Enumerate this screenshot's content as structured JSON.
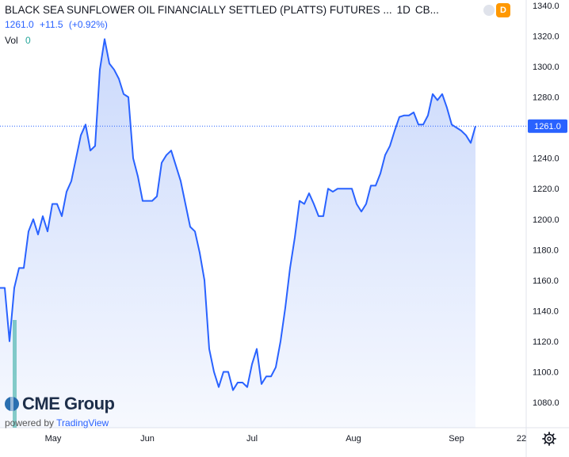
{
  "header": {
    "title": "BLACK SEA SUNFLOWER OIL FINANCIALLY SETTLED (PLATTS) FUTURES ...",
    "interval": "1D",
    "exchange": "CB...",
    "last": "1261.0",
    "change": "+11.5",
    "change_pct": "(+0.92%)",
    "vol_label": "Vol",
    "vol_value": "0",
    "badge": "D"
  },
  "logo": {
    "brand": "CME Group",
    "powered_prefix": "powered by",
    "powered_brand": "TradingView"
  },
  "colors": {
    "line": "#2962ff",
    "area_top": "#c5d5fb",
    "area_bottom": "#ffffff",
    "volume": "#26a69a",
    "price_label_bg": "#2962ff"
  },
  "chart_data": {
    "type": "area",
    "ylim": [
      1060,
      1340
    ],
    "yticks": [
      "1340.0",
      "1320.0",
      "1300.0",
      "1280.0",
      "1260.0",
      "1240.0",
      "1220.0",
      "1200.0",
      "1180.0",
      "1160.0",
      "1140.0",
      "1120.0",
      "1100.0",
      "1080.0"
    ],
    "xticks": [
      "May",
      "Jun",
      "Jul",
      "Aug",
      "Sep",
      "22"
    ],
    "last_price_label": "1261.0",
    "last_value": 1261,
    "series": [
      {
        "values": [
          1155,
          1155,
          1120,
          1155,
          1168,
          1168,
          1192,
          1200,
          1190,
          1202,
          1192,
          1210,
          1210,
          1202,
          1218,
          1225,
          1240,
          1255,
          1262,
          1245,
          1248,
          1298,
          1318,
          1302,
          1298,
          1292,
          1282,
          1280,
          1240,
          1228,
          1212,
          1212,
          1212,
          1215,
          1237,
          1242,
          1245,
          1235,
          1225,
          1210,
          1195,
          1192,
          1178,
          1160,
          1115,
          1100,
          1090,
          1100,
          1100,
          1088,
          1093,
          1093,
          1090,
          1105,
          1115,
          1092,
          1097,
          1097,
          1103,
          1120,
          1142,
          1168,
          1188,
          1212,
          1210,
          1217,
          1210,
          1202,
          1202,
          1220,
          1218,
          1220,
          1220,
          1220,
          1220,
          1210,
          1205,
          1210,
          1222,
          1222,
          1230,
          1242,
          1248,
          1258,
          1267,
          1268,
          1268,
          1270,
          1262,
          1262,
          1268,
          1282,
          1278,
          1282,
          1273,
          1262,
          1260,
          1258,
          1255,
          1250,
          1261
        ]
      }
    ],
    "volume": [
      {
        "value": 1
      }
    ]
  }
}
